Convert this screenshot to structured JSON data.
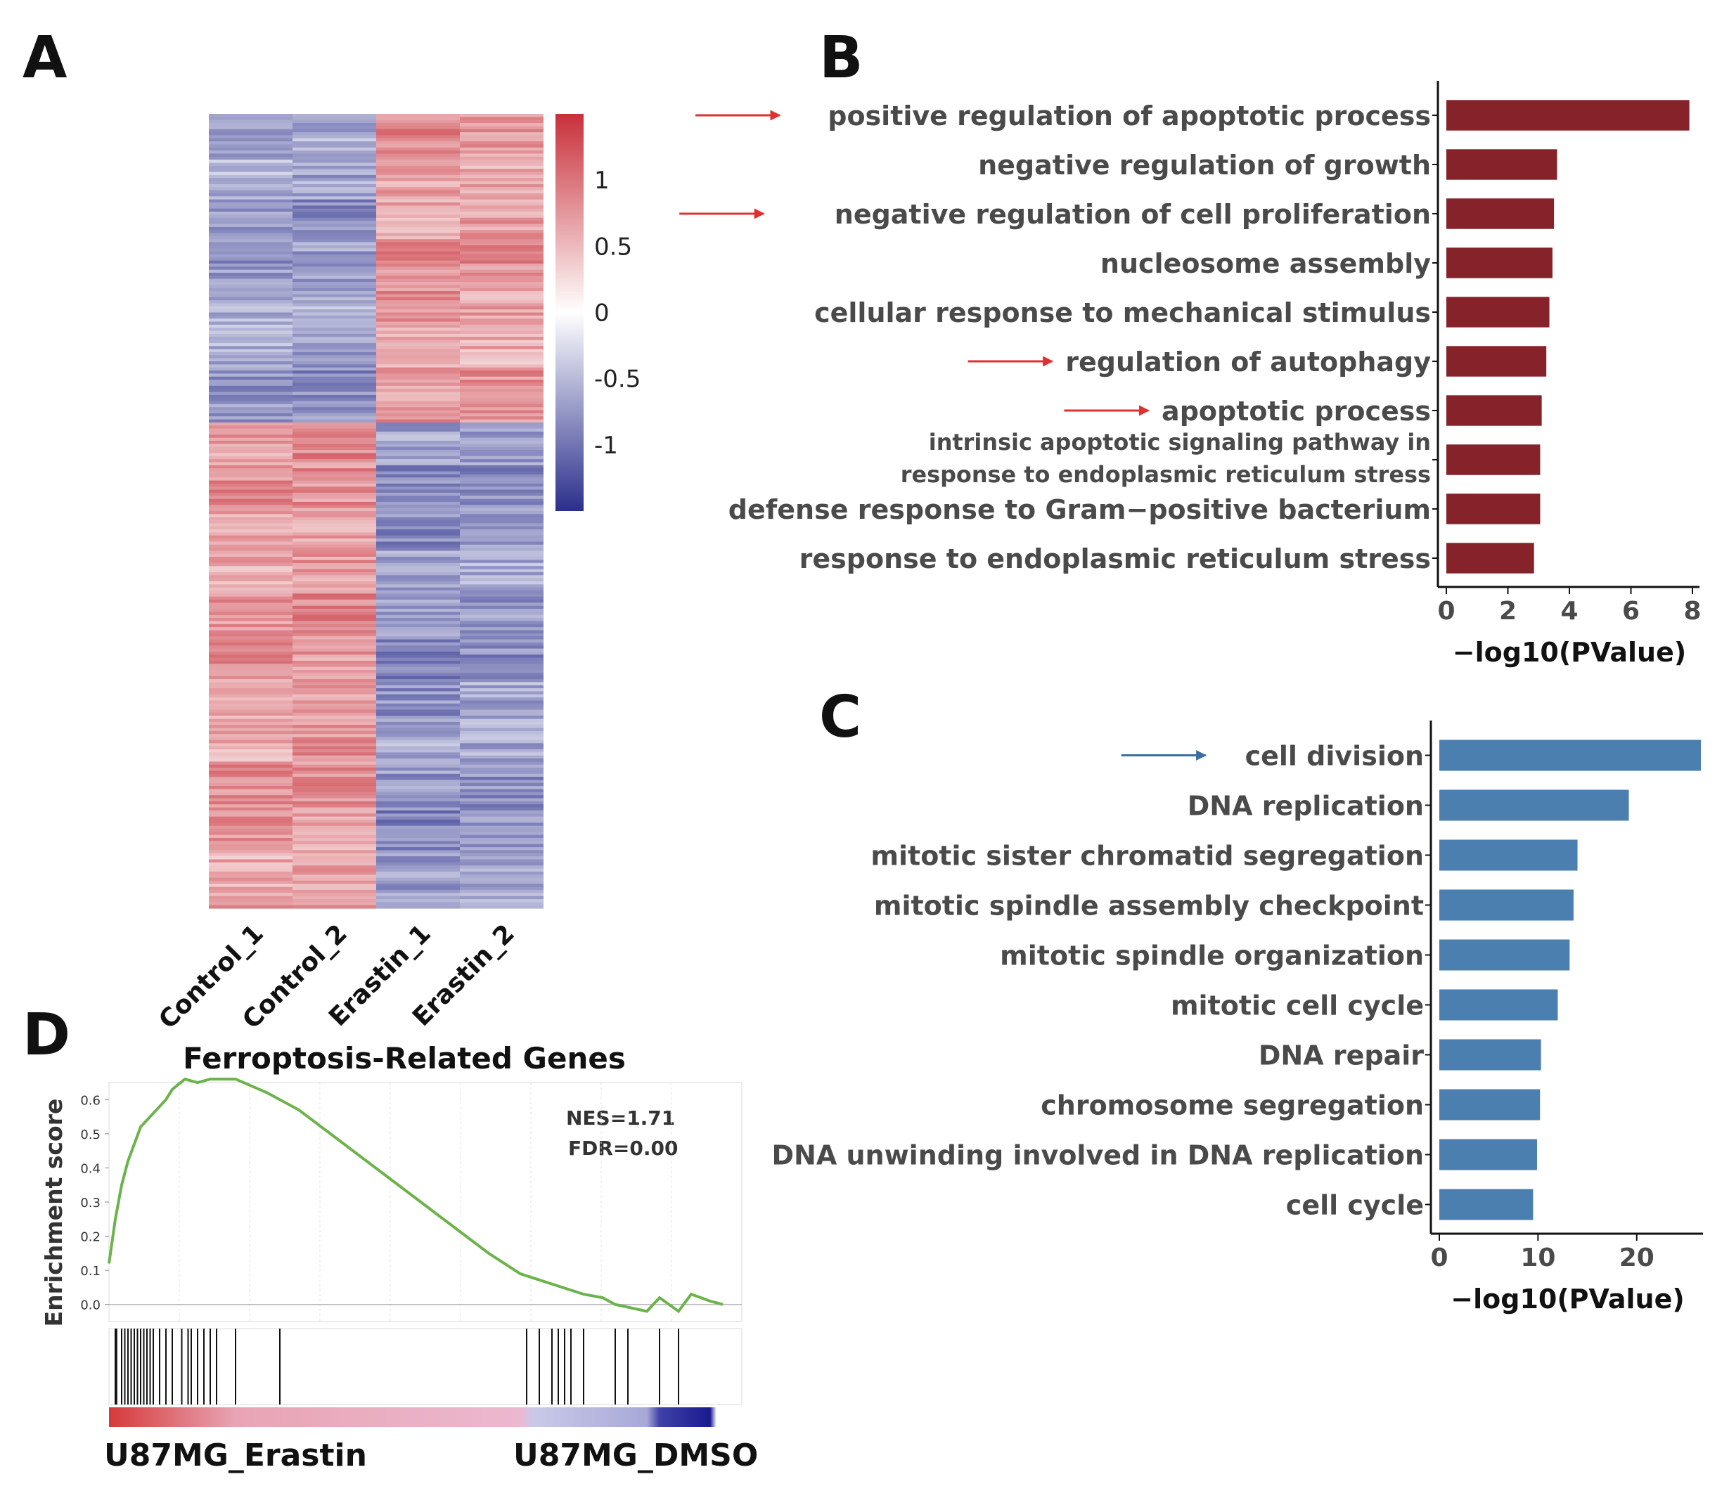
{
  "panels": {
    "a": "A",
    "b": "B",
    "c": "C",
    "d": "D"
  },
  "colors": {
    "up": "#c8303a",
    "mid": "#ffffff",
    "down": "#2b2f8c",
    "bar_b": "#85222a",
    "bar_c": "#4a7fb0",
    "arrow_b": "#e03030",
    "arrow_c": "#3a6fa0",
    "gsea_line": "#6bb34a"
  },
  "chart_data": [
    {
      "id": "A",
      "type": "heatmap",
      "title": "",
      "columns": [
        "Control_1",
        "Control_2",
        "Erastin_1",
        "Erastin_2"
      ],
      "colorbar": {
        "ticks": [
          "1",
          "0.5",
          "0",
          "-0.5",
          "-1"
        ],
        "tick_values": [
          1,
          0.5,
          0,
          -0.5,
          -1
        ],
        "range": [
          -1.5,
          1.5
        ]
      },
      "clusters": [
        {
          "name": "up_in_erastin",
          "row_share": 0.39,
          "mean_values": [
            -0.65,
            -0.7,
            0.75,
            0.7
          ]
        },
        {
          "name": "down_in_erastin",
          "row_share": 0.61,
          "mean_values": [
            0.7,
            0.75,
            -0.75,
            -0.7
          ]
        }
      ]
    },
    {
      "id": "B",
      "type": "bar",
      "orientation": "horizontal",
      "categories": [
        "positive regulation of apoptotic process",
        "negative regulation of growth",
        "negative regulation of cell proliferation",
        "nucleosome assembly",
        "cellular response to mechanical stimulus",
        "regulation of autophagy",
        "apoptotic process",
        "intrinsic apoptotic signaling pathway in response to endoplasmic reticulum stress",
        "defense response to Gram−positive bacterium",
        "response to endoplasmic reticulum stress"
      ],
      "label_lines": [
        [
          "positive regulation of apoptotic process"
        ],
        [
          "negative regulation of growth"
        ],
        [
          "negative regulation of cell proliferation"
        ],
        [
          "nucleosome assembly"
        ],
        [
          "cellular response to mechanical stimulus"
        ],
        [
          "regulation of autophagy"
        ],
        [
          "apoptotic process"
        ],
        [
          "intrinsic apoptotic signaling pathway in",
          "response to endoplasmic reticulum stress"
        ],
        [
          "defense response to Gram−positive bacterium"
        ],
        [
          "response to endoplasmic reticulum stress"
        ]
      ],
      "values": [
        7.9,
        3.6,
        3.5,
        3.45,
        3.35,
        3.25,
        3.1,
        3.05,
        3.05,
        2.85
      ],
      "highlighted": [
        0,
        2,
        5,
        6
      ],
      "xlabel": "−log10(PValue)",
      "ylabel": "",
      "xlim": [
        0,
        8
      ],
      "xticks": [
        0,
        2,
        4,
        6,
        8
      ]
    },
    {
      "id": "C",
      "type": "bar",
      "orientation": "horizontal",
      "categories": [
        "cell division",
        "DNA replication",
        "mitotic sister chromatid segregation",
        "mitotic spindle assembly checkpoint",
        "mitotic spindle organization",
        "mitotic cell cycle",
        "DNA repair",
        "chromosome segregation",
        "DNA unwinding involved in DNA replication",
        "cell cycle"
      ],
      "values": [
        26.5,
        19.2,
        14.0,
        13.6,
        13.2,
        12.0,
        10.3,
        10.2,
        9.9,
        9.5
      ],
      "highlighted": [
        0
      ],
      "xlabel": "−log10(PValue)",
      "ylabel": "",
      "xlim": [
        0,
        26
      ],
      "xticks": [
        0,
        10,
        20
      ]
    },
    {
      "id": "D",
      "type": "line",
      "title": "Ferroptosis-Related Genes",
      "ylabel": "Enrichment score",
      "xlabel": "",
      "ylim": [
        -0.05,
        0.65
      ],
      "yticks": [
        0.6,
        0.5,
        0.4,
        0.3,
        0.2,
        0.1,
        0.0
      ],
      "ytick_labels": [
        "0.6",
        "0.5",
        "0.4",
        "0.3",
        "0.2",
        "0.1",
        "0.0"
      ],
      "xlim": [
        0,
        1
      ],
      "es_curve": [
        [
          0.0,
          0.12
        ],
        [
          0.01,
          0.25
        ],
        [
          0.02,
          0.35
        ],
        [
          0.03,
          0.42
        ],
        [
          0.04,
          0.47
        ],
        [
          0.05,
          0.52
        ],
        [
          0.07,
          0.56
        ],
        [
          0.09,
          0.6
        ],
        [
          0.1,
          0.63
        ],
        [
          0.12,
          0.66
        ],
        [
          0.14,
          0.65
        ],
        [
          0.16,
          0.66
        ],
        [
          0.18,
          0.66
        ],
        [
          0.2,
          0.66
        ],
        [
          0.25,
          0.62
        ],
        [
          0.3,
          0.57
        ],
        [
          0.35,
          0.5
        ],
        [
          0.4,
          0.43
        ],
        [
          0.45,
          0.36
        ],
        [
          0.5,
          0.29
        ],
        [
          0.55,
          0.22
        ],
        [
          0.6,
          0.15
        ],
        [
          0.65,
          0.09
        ],
        [
          0.7,
          0.06
        ],
        [
          0.75,
          0.03
        ],
        [
          0.78,
          0.02
        ],
        [
          0.8,
          0.0
        ],
        [
          0.85,
          -0.02
        ],
        [
          0.87,
          0.02
        ],
        [
          0.9,
          -0.02
        ],
        [
          0.92,
          0.03
        ],
        [
          0.95,
          0.01
        ],
        [
          0.97,
          0.0
        ]
      ],
      "hits": [
        0.01,
        0.012,
        0.02,
        0.025,
        0.03,
        0.035,
        0.04,
        0.045,
        0.05,
        0.055,
        0.06,
        0.065,
        0.07,
        0.08,
        0.09,
        0.1,
        0.115,
        0.125,
        0.13,
        0.14,
        0.15,
        0.16,
        0.17,
        0.2,
        0.27,
        0.66,
        0.68,
        0.7,
        0.71,
        0.72,
        0.73,
        0.75,
        0.8,
        0.82,
        0.87,
        0.9
      ],
      "annotations": {
        "nes": "NES=1.71",
        "fdr": "FDR=0.00"
      },
      "group_labels": {
        "left": "U87MG_Erastin",
        "right": "U87MG_DMSO"
      }
    }
  ]
}
